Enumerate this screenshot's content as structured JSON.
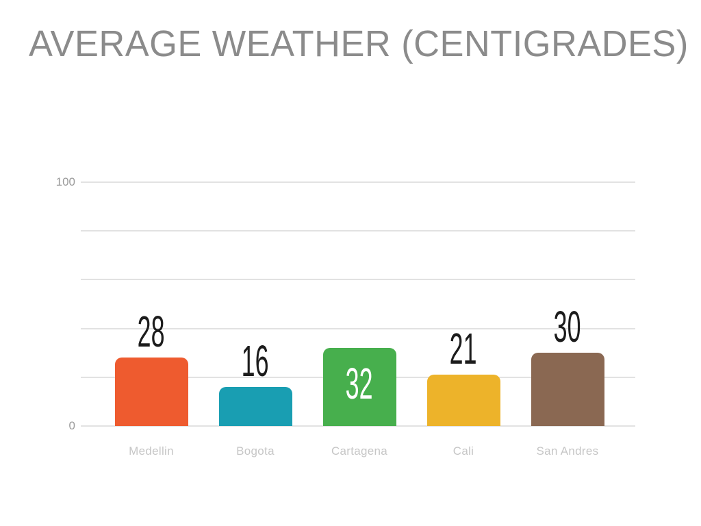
{
  "title": "AVERAGE WEATHER (CENTIGRADES)",
  "chart_data": {
    "type": "bar",
    "title": "AVERAGE WEATHER (CENTIGRADES)",
    "categories": [
      "Medellin",
      "Bogota",
      "Cartagena",
      "Cali",
      "San Andres"
    ],
    "values": [
      28,
      16,
      32,
      21,
      30
    ],
    "bar_colors": [
      "#ee5b2f",
      "#199eb2",
      "#47af4d",
      "#edb32a",
      "#8a6852"
    ],
    "value_label_inside": [
      false,
      false,
      true,
      false,
      false
    ],
    "value_label_colors": [
      "#1c1c1c",
      "#1c1c1c",
      "#ffffff",
      "#1c1c1c",
      "#1c1c1c"
    ],
    "xlabel": "",
    "ylabel": "",
    "ylim": [
      0,
      100
    ],
    "gridline_values": [
      0,
      20,
      40,
      60,
      80,
      100
    ],
    "ytick_labels": [
      {
        "value": 100,
        "label": "100"
      },
      {
        "value": 0,
        "label": "0"
      }
    ],
    "grid": true,
    "legend": false,
    "colors": {
      "title_text": "#8b8b8b",
      "axis_tick_text": "#9a9a9a",
      "category_text": "#c6c6c6",
      "gridline": "#e2e2e2",
      "background": "#ffffff"
    }
  }
}
